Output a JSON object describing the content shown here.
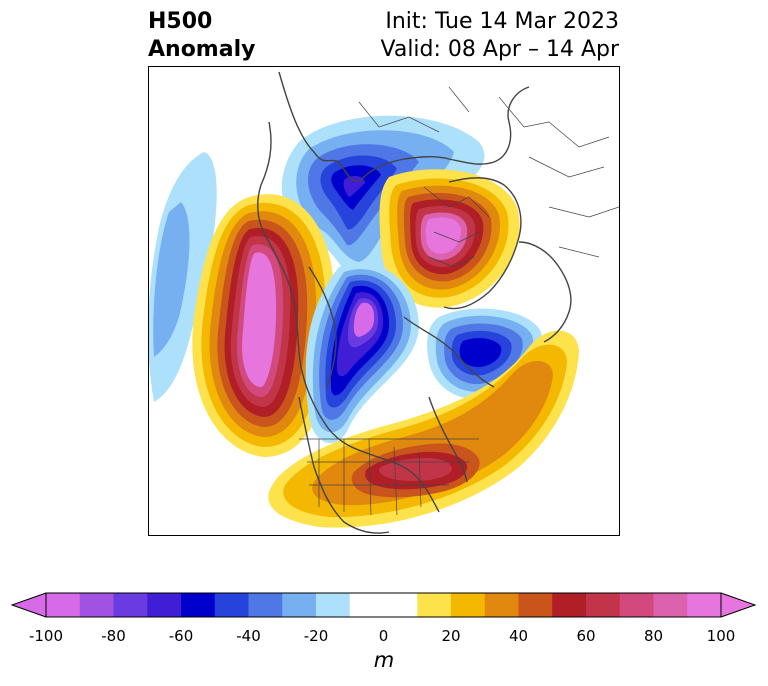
{
  "header": {
    "title_line1": "H500",
    "title_line2": "Anomaly",
    "init": "Init: Tue 14 Mar 2023",
    "valid": "Valid: 08 Apr – 14 Apr"
  },
  "colorbar": {
    "unit": "m",
    "ticks": [
      "-100",
      "-80",
      "-60",
      "-40",
      "-20",
      "0",
      "20",
      "40",
      "60",
      "80",
      "100"
    ],
    "colors": [
      "#d66ae8",
      "#a152e0",
      "#6a3be0",
      "#3f1ed6",
      "#0000cd",
      "#2644db",
      "#4f78e6",
      "#76b0f0",
      "#ade0fb",
      "#ffffff",
      "#ffffff",
      "#fde24c",
      "#f4b800",
      "#e0890e",
      "#c9541c",
      "#b01f25",
      "#c23448",
      "#d24a7d",
      "#dc62ae",
      "#e676de"
    ],
    "min_color": "#d66ae8",
    "max_color": "#e676de"
  },
  "anomalies": [
    {
      "label": "trough-arctic",
      "sign": "negative",
      "peak": -80
    },
    {
      "label": "ridge-russia",
      "sign": "positive",
      "peak": 100
    },
    {
      "label": "ridge-north-pacific",
      "sign": "positive",
      "peak": 100
    },
    {
      "label": "trough-hudson-bay",
      "sign": "negative",
      "peak": -100
    },
    {
      "label": "trough-north-atlantic",
      "sign": "negative",
      "peak": -60
    },
    {
      "label": "ridge-eastern-us",
      "sign": "positive",
      "peak": 60
    }
  ]
}
